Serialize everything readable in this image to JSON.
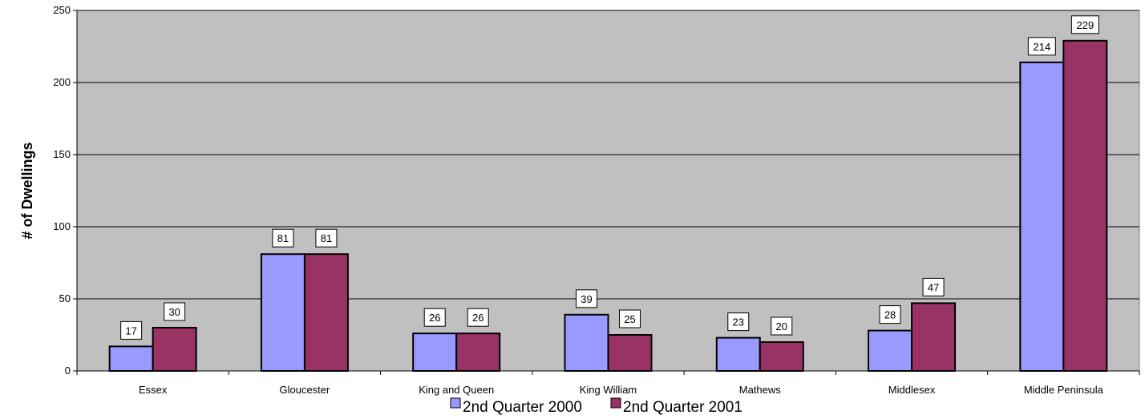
{
  "chart_data": {
    "type": "bar",
    "title": "",
    "xlabel": "",
    "ylabel": "# of Dwellings",
    "ylim": [
      0,
      250
    ],
    "yticks": [
      0,
      50,
      100,
      150,
      200,
      250
    ],
    "grid": true,
    "legend_position": "bottom",
    "categories": [
      "Essex",
      "Gloucester",
      "King and Queen",
      "King William",
      "Mathews",
      "Middlesex",
      "Middle Peninsula"
    ],
    "series": [
      {
        "name": "2nd Quarter 2000",
        "color": "#9999ff",
        "values": [
          17,
          81,
          26,
          39,
          23,
          28,
          214
        ]
      },
      {
        "name": "2nd Quarter 2001",
        "color": "#993366",
        "values": [
          30,
          81,
          26,
          25,
          20,
          47,
          229
        ]
      }
    ],
    "plot_background": "#c0c0c0"
  }
}
